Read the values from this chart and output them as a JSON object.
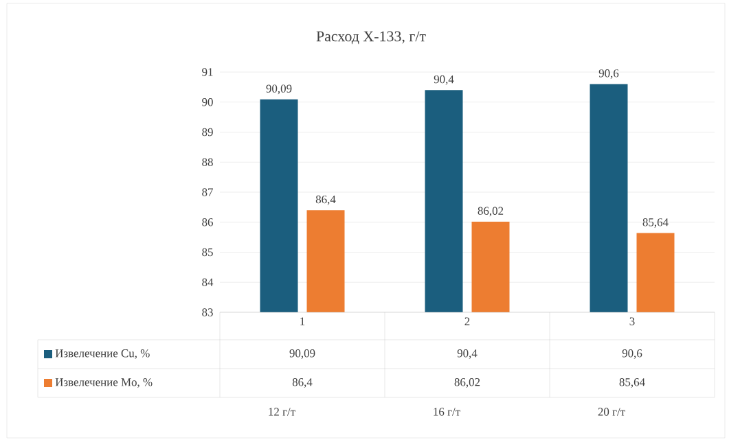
{
  "chart_data": {
    "type": "bar",
    "title": "Расход Х-133, г/т",
    "categories": [
      "1",
      "2",
      "3"
    ],
    "series": [
      {
        "name": "Извелечение  Cu, %",
        "color": "#1b5e7e",
        "values": [
          90.09,
          90.4,
          90.6
        ],
        "value_labels": [
          "90,09",
          "90,4",
          "90,6"
        ]
      },
      {
        "name": "Извелечение  Mo, %",
        "color": "#ed7d31",
        "values": [
          86.4,
          86.02,
          85.64
        ],
        "value_labels": [
          "86,4",
          "86,02",
          "85,64"
        ]
      }
    ],
    "ylim": [
      83,
      91
    ],
    "yticks": [
      83,
      84,
      85,
      86,
      87,
      88,
      89,
      90,
      91
    ],
    "grid": "y",
    "legend": "bottom",
    "annotations": [
      "12 г/т",
      "16 г/т",
      "20 г/т"
    ]
  }
}
